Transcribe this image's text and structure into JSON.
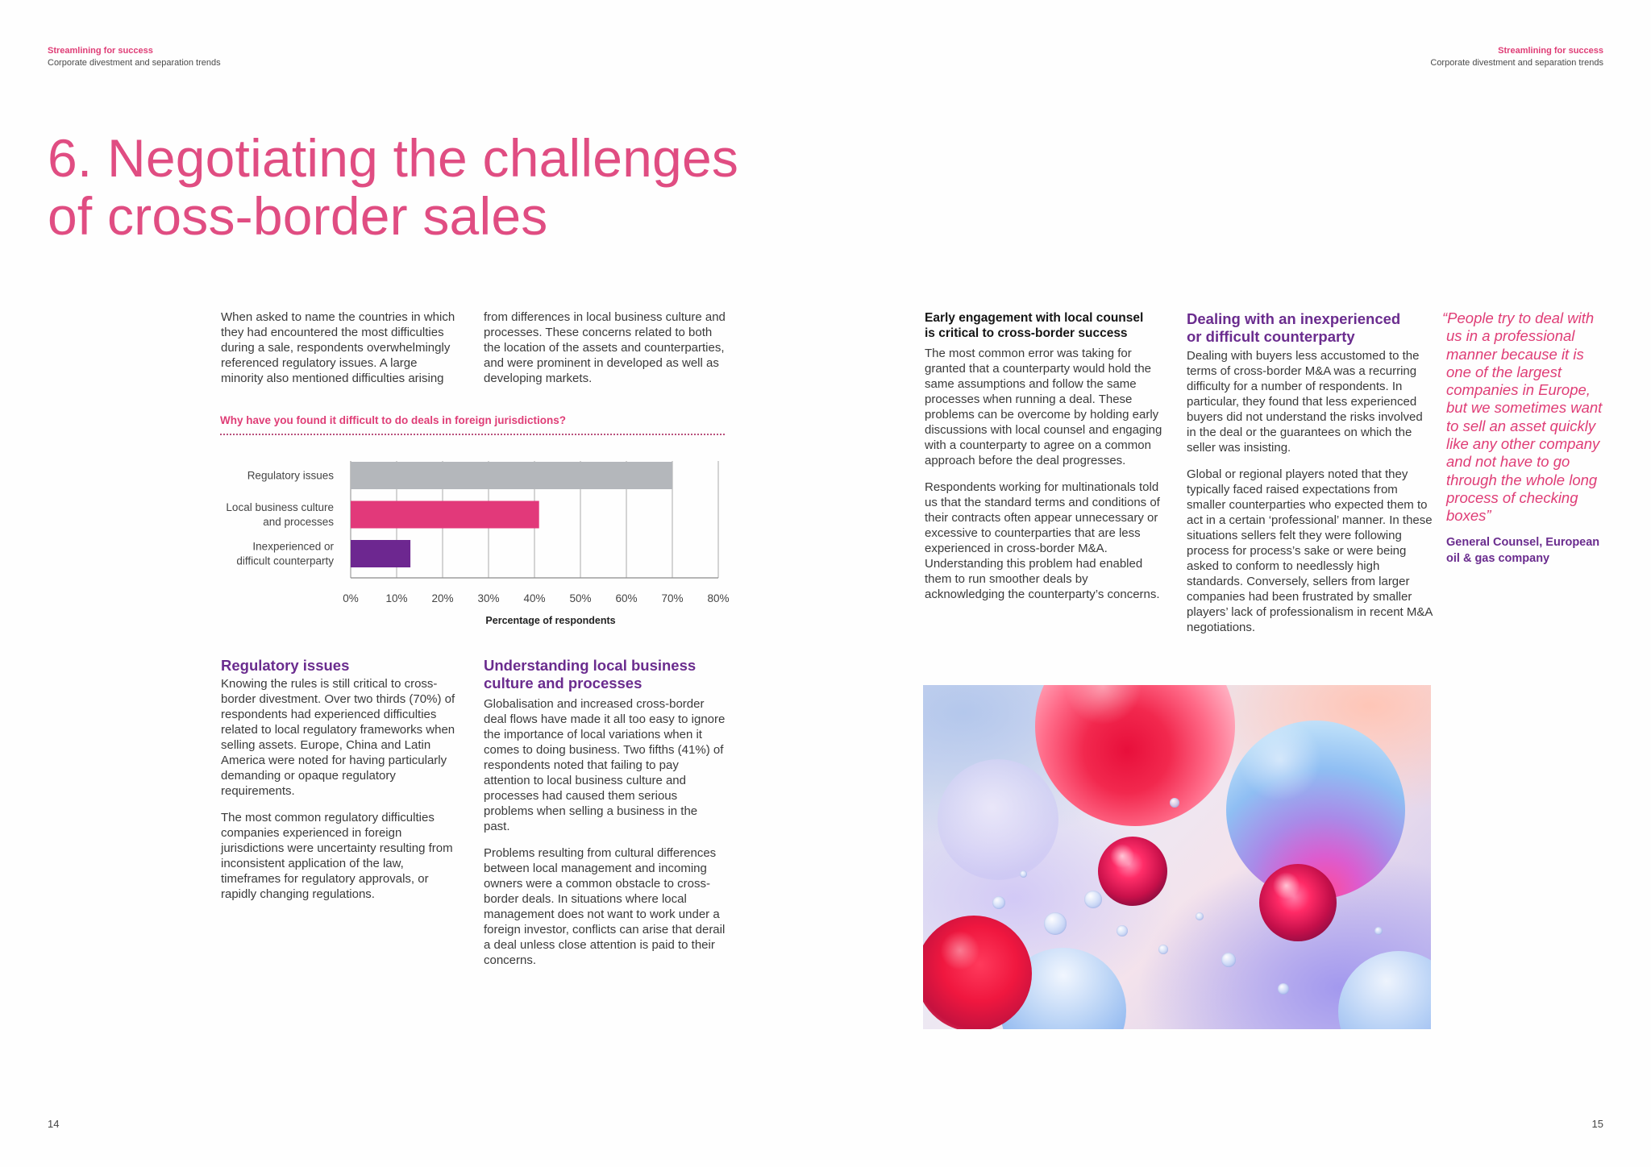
{
  "header": {
    "left": {
      "title": "Streamlining for success",
      "subtitle": "Corporate divestment and separation trends"
    },
    "right": {
      "title": "Streamlining for success",
      "subtitle": "Corporate divestment and separation trends"
    }
  },
  "page_title": "6. Negotiating the challenges of cross-border sales",
  "intro": {
    "col1": "When asked to name the countries in which they had encountered the most difficulties during a sale, respondents overwhelmingly referenced regulatory issues. A large minority also mentioned difficulties arising",
    "col2": "from differences in local business culture and processes. These concerns related to both the location of the assets and counterparties, and were prominent in developed as well as developing markets."
  },
  "chart_data": {
    "type": "bar",
    "orientation": "horizontal",
    "title": "Why have you found it difficult to do deals in foreign jurisdictions?",
    "categories": [
      "Regulatory issues",
      "Local business culture and processes",
      "Inexperienced or difficult counterparty"
    ],
    "values": [
      70,
      41,
      13
    ],
    "colors": [
      "#B4B7BB",
      "#E2397A",
      "#6D2790"
    ],
    "xlabel": "Percentage of respondents",
    "xlim": [
      0,
      80
    ],
    "xtick_labels": [
      "0%",
      "10%",
      "20%",
      "30%",
      "40%",
      "50%",
      "60%",
      "70%",
      "80%"
    ],
    "grid": true
  },
  "sections": {
    "regulatory": {
      "heading": "Regulatory issues",
      "paragraphs": [
        "Knowing the rules is still critical to cross-border divestment. Over two thirds (70%) of respondents had experienced difficulties related to local regulatory frameworks when selling assets. Europe, China and Latin America were noted for having particularly demanding or opaque regulatory requirements.",
        "The most common regulatory difficulties companies experienced in foreign jurisdictions were uncertainty resulting from inconsistent application of the law, timeframes for regulatory approvals, or rapidly changing regulations."
      ]
    },
    "culture": {
      "heading": "Understanding local business culture and processes",
      "paragraphs": [
        "Globalisation and increased cross-border deal flows have made it all too easy to ignore the importance of local variations when it comes to doing business. Two fifths (41%) of respondents noted that failing to pay attention to local business culture and processes had caused them serious problems when selling a business in the past.",
        "Problems resulting from cultural differences between local management and incoming owners were a common obstacle to cross-border deals. In situations where local management does not want to work under a foreign investor, conflicts can arise that derail a deal unless close attention is paid to their concerns."
      ]
    },
    "early_engagement": {
      "heading": "Early engagement with local counsel is critical to cross-border success",
      "paragraphs": [
        "The most common error was taking for granted that a counterparty would hold the same assumptions and follow the same processes when running a deal. These problems can be overcome by holding early discussions with local counsel and engaging with a counterparty to agree on a common approach before the deal progresses.",
        "Respondents working for multinationals told us that the standard terms and conditions of their contracts often appear unnecessary or excessive to counterparties that are less experienced in cross-border M&A. Understanding this problem had enabled them to run smoother deals by acknowledging the counterparty’s concerns."
      ]
    },
    "counterparty": {
      "heading": "Dealing with an inexperienced or difficult counterparty",
      "paragraphs": [
        "Dealing with buyers less accustomed to the terms of cross-border M&A was a recurring difficulty for a number of respondents. In particular, they found that less experienced buyers did not understand the risks involved in the deal or the guarantees on which the seller was insisting.",
        "Global or regional players noted that they typically faced raised expectations from smaller counterparties who expected them to act in a certain ‘professional’ manner. In these situations sellers felt they were following process for process’s sake or were being asked to conform to needlessly high standards. Conversely, sellers from larger companies had been frustrated by smaller players’ lack of professionalism in recent M&A negotiations."
      ]
    }
  },
  "quote": {
    "text": "“People try to deal with us in a professional manner because it is one of the largest companies in Europe, but we sometimes want to sell an asset quickly like any other company and not have to go through the whole long process of checking boxes”",
    "attribution": "General Counsel, European oil & gas company"
  },
  "page_numbers": {
    "left": "14",
    "right": "15"
  },
  "colors": {
    "accent_pink": "#DF3D76",
    "accent_purple": "#6A2C8E",
    "body_text": "#3A3A3A"
  }
}
